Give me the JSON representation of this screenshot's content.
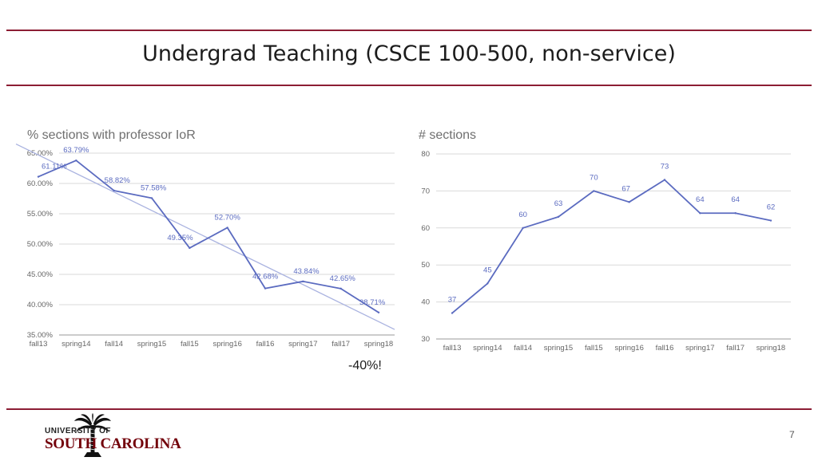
{
  "slide": {
    "title": "Undergrad Teaching (CSCE 100-500, non-service)",
    "note": "-40%!",
    "page_number": "7",
    "logo": {
      "line1": "UNIVERSITY OF",
      "line2": "SOUTH CAROLINA",
      "icon": "palmetto-tree-icon"
    },
    "accent_color": "#8c1d34",
    "brand_color": "#73000a"
  },
  "chart_data": [
    {
      "type": "line",
      "title": "% sections with professor IoR",
      "categories": [
        "fall13",
        "spring14",
        "fall14",
        "spring15",
        "fall15",
        "spring16",
        "fall16",
        "spring17",
        "fall17",
        "spring18"
      ],
      "series": [
        {
          "values": [
            61.11,
            63.79,
            58.82,
            57.58,
            49.35,
            52.7,
            42.68,
            43.84,
            42.65,
            38.71
          ],
          "labels": [
            "61.11%",
            "63.79%",
            "58.82%",
            "57.58%",
            "49.35%",
            "52.70%",
            "42.68%",
            "43.84%",
            "42.65%",
            "38.71%"
          ],
          "color": "#5b6bc0"
        }
      ],
      "trendline": {
        "start": 64.7,
        "end": 37.2,
        "color": "#aab3e0"
      },
      "ylim": [
        35,
        65
      ],
      "yticks": [
        35,
        40,
        45,
        50,
        55,
        60,
        65
      ],
      "ytick_labels": [
        "35.00%",
        "40.00%",
        "45.00%",
        "50.00%",
        "55.00%",
        "60.00%",
        "65.00%"
      ],
      "grid": true,
      "legend": "none"
    },
    {
      "type": "line",
      "title": "# sections",
      "categories": [
        "fall13",
        "spring14",
        "fall14",
        "spring15",
        "fall15",
        "spring16",
        "fall16",
        "spring17",
        "fall17",
        "spring18"
      ],
      "series": [
        {
          "values": [
            37,
            45,
            60,
            63,
            70,
            67,
            73,
            64,
            64,
            62
          ],
          "labels": [
            "37",
            "45",
            "60",
            "63",
            "70",
            "67",
            "73",
            "64",
            "64",
            "62"
          ],
          "color": "#5b6bc0"
        }
      ],
      "ylim": [
        30,
        80
      ],
      "yticks": [
        30,
        40,
        50,
        60,
        70,
        80
      ],
      "ytick_labels": [
        "30",
        "40",
        "50",
        "60",
        "70",
        "80"
      ],
      "grid": true,
      "legend": "none"
    }
  ]
}
